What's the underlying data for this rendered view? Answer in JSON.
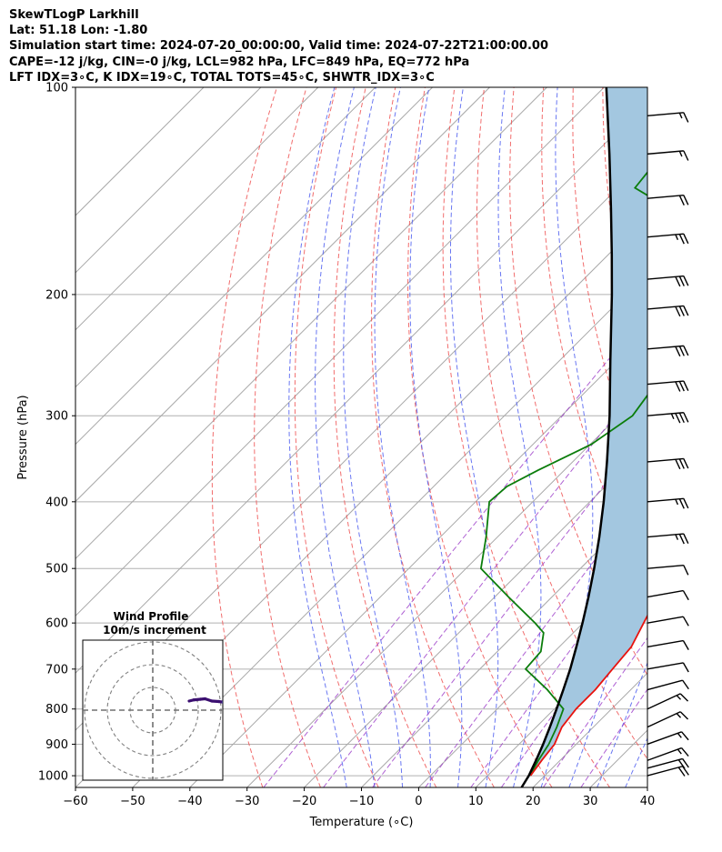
{
  "header": {
    "line1": "SkewTLogP Larkhill",
    "line2": "Lat: 51.18   Lon: -1.80",
    "line3": "Simulation start time: 2024-07-20_00:00:00, Valid time: 2024-07-22T21:00:00.00",
    "line4": "CAPE=-12 j/kg, CIN=-0 j/kg, LCL=982 hPa, LFC=849 hPa, EQ=772 hPa",
    "line5": "LFT IDX=3∘C, K IDX=19∘C, TOTAL TOTS=45∘C, SHWTR_IDX=3∘C"
  },
  "chart_data": {
    "type": "line",
    "xlabel": "Temperature (∘C)",
    "ylabel": "Pressure (hPa)",
    "xlim": [
      -60,
      40
    ],
    "ylim": [
      1040,
      100
    ],
    "y_scale": "log",
    "skew": true,
    "x_ticks": [
      -60,
      -50,
      -40,
      -30,
      -20,
      -10,
      0,
      10,
      20,
      30,
      40
    ],
    "x_tick_labels": [
      "−60",
      "−50",
      "−40",
      "−30",
      "−20",
      "−10",
      "0",
      "10",
      "20",
      "30",
      "40"
    ],
    "y_ticks": [
      100,
      200,
      300,
      400,
      500,
      600,
      700,
      800,
      900,
      1000
    ],
    "y_tick_labels": [
      "100",
      "200",
      "300",
      "400",
      "500",
      "600",
      "700",
      "800",
      "900",
      "1000"
    ],
    "series": [
      {
        "name": "",
        "role": "temperature",
        "color": "#e8130e",
        "points": [
          [
            1000,
            17.5
          ],
          [
            950,
            16.8
          ],
          [
            900,
            16.2
          ],
          [
            850,
            14.5
          ],
          [
            800,
            13.8
          ],
          [
            750,
            13.8
          ],
          [
            700,
            13.2
          ],
          [
            650,
            12.6
          ],
          [
            600,
            10.6
          ],
          [
            550,
            8.4
          ],
          [
            500,
            6.2
          ],
          [
            450,
            3.2
          ],
          [
            400,
            -0.6
          ],
          [
            350,
            -5.8
          ],
          [
            300,
            -12.4
          ],
          [
            260,
            -19.2
          ],
          [
            230,
            -27.4
          ],
          [
            200,
            -35.0
          ],
          [
            180,
            -38.2
          ],
          [
            160,
            -43.4
          ],
          [
            140,
            -50.4
          ],
          [
            120,
            -58.4
          ],
          [
            110,
            -63.2
          ],
          [
            100,
            -68.8
          ]
        ]
      },
      {
        "name": "",
        "role": "dewpoint",
        "color": "#0b7d0b",
        "points": [
          [
            1000,
            17.4
          ],
          [
            950,
            16.2
          ],
          [
            900,
            15.2
          ],
          [
            850,
            13.6
          ],
          [
            800,
            11.6
          ],
          [
            750,
            5.4
          ],
          [
            700,
            -2.0
          ],
          [
            660,
            -2.4
          ],
          [
            620,
            -5.2
          ],
          [
            600,
            -8.4
          ],
          [
            550,
            -17.6
          ],
          [
            500,
            -27.4
          ],
          [
            450,
            -32.0
          ],
          [
            400,
            -37.6
          ],
          [
            380,
            -37.2
          ],
          [
            360,
            -34.6
          ],
          [
            330,
            -29.8
          ],
          [
            300,
            -27.6
          ],
          [
            260,
            -29.6
          ],
          [
            230,
            -34.0
          ],
          [
            200,
            -38.2
          ],
          [
            180,
            -42.0
          ],
          [
            168,
            -45.8
          ],
          [
            150,
            -57.4
          ],
          [
            140,
            -67.0
          ],
          [
            120,
            -68.6
          ],
          [
            100,
            -72.4
          ]
        ]
      },
      {
        "name": "",
        "role": "parcel",
        "color": "#000000",
        "points": [
          [
            1040,
            18.0
          ],
          [
            1000,
            17.2
          ],
          [
            950,
            15.8
          ],
          [
            900,
            14.2
          ],
          [
            850,
            12.4
          ],
          [
            800,
            10.4
          ],
          [
            750,
            8.2
          ],
          [
            700,
            5.8
          ],
          [
            650,
            3.0
          ],
          [
            600,
            -0.1
          ],
          [
            550,
            -3.6
          ],
          [
            500,
            -7.6
          ],
          [
            450,
            -12.2
          ],
          [
            400,
            -17.6
          ],
          [
            350,
            -24.0
          ],
          [
            300,
            -31.6
          ],
          [
            250,
            -41.0
          ],
          [
            200,
            -52.4
          ],
          [
            175,
            -59.4
          ],
          [
            150,
            -67.6
          ],
          [
            125,
            -77.4
          ],
          [
            100,
            -89.6
          ]
        ]
      }
    ],
    "dry_adiabats_theta_c": [
      -30,
      -20,
      -10,
      0,
      10,
      20,
      30,
      40,
      50,
      60,
      70,
      80,
      90,
      100,
      110,
      120,
      130,
      140,
      150,
      160,
      170
    ],
    "moist_adiabats_c": [
      -15,
      -10,
      -5,
      0,
      5,
      10,
      15,
      20,
      25,
      30,
      35
    ],
    "mixing_ratio_lines_gkg": [
      0.4,
      1,
      2,
      4,
      7,
      10,
      16,
      24
    ],
    "wind_barbs": [
      {
        "p": 1000,
        "speed_kt": 20,
        "dir_deg": 255
      },
      {
        "p": 975,
        "speed_kt": 20,
        "dir_deg": 255
      },
      {
        "p": 950,
        "speed_kt": 15,
        "dir_deg": 250
      },
      {
        "p": 900,
        "speed_kt": 15,
        "dir_deg": 250
      },
      {
        "p": 850,
        "speed_kt": 15,
        "dir_deg": 245
      },
      {
        "p": 800,
        "speed_kt": 15,
        "dir_deg": 245
      },
      {
        "p": 750,
        "speed_kt": 10,
        "dir_deg": 255
      },
      {
        "p": 700,
        "speed_kt": 10,
        "dir_deg": 260
      },
      {
        "p": 650,
        "speed_kt": 10,
        "dir_deg": 260
      },
      {
        "p": 600,
        "speed_kt": 10,
        "dir_deg": 260
      },
      {
        "p": 550,
        "speed_kt": 10,
        "dir_deg": 260
      },
      {
        "p": 500,
        "speed_kt": 10,
        "dir_deg": 265
      },
      {
        "p": 450,
        "speed_kt": 25,
        "dir_deg": 265
      },
      {
        "p": 400,
        "speed_kt": 25,
        "dir_deg": 265
      },
      {
        "p": 350,
        "speed_kt": 30,
        "dir_deg": 265
      },
      {
        "p": 300,
        "speed_kt": 35,
        "dir_deg": 265
      },
      {
        "p": 270,
        "speed_kt": 30,
        "dir_deg": 265
      },
      {
        "p": 240,
        "speed_kt": 30,
        "dir_deg": 265
      },
      {
        "p": 210,
        "speed_kt": 30,
        "dir_deg": 265
      },
      {
        "p": 190,
        "speed_kt": 30,
        "dir_deg": 265
      },
      {
        "p": 165,
        "speed_kt": 25,
        "dir_deg": 265
      },
      {
        "p": 145,
        "speed_kt": 20,
        "dir_deg": 265
      },
      {
        "p": 125,
        "speed_kt": 15,
        "dir_deg": 265
      },
      {
        "p": 110,
        "speed_kt": 15,
        "dir_deg": 265
      }
    ],
    "hodograph": {
      "title_line1": "Wind Profile",
      "title_line2": "10m/s increment",
      "ring_spacing_ms": 10,
      "rings": 3,
      "points": [
        [
          16,
          4
        ],
        [
          18,
          4.5
        ],
        [
          21,
          4.8
        ],
        [
          23,
          5
        ],
        [
          26,
          4
        ],
        [
          29,
          3.8
        ],
        [
          31,
          3.5
        ],
        [
          33,
          3
        ],
        [
          37,
          2
        ],
        [
          40,
          1
        ],
        [
          43,
          1.5
        ],
        [
          45,
          2.5
        ],
        [
          48,
          3
        ],
        [
          50,
          4
        ],
        [
          52,
          4.5
        ],
        [
          55,
          5
        ],
        [
          58,
          5.5
        ],
        [
          62,
          6
        ],
        [
          66,
          6.5
        ],
        [
          70,
          7
        ],
        [
          74,
          7.5
        ],
        [
          78,
          8
        ],
        [
          82,
          8.5
        ],
        [
          86,
          8.5
        ],
        [
          90,
          8.5
        ],
        [
          94,
          8.5
        ],
        [
          100,
          8.8
        ],
        [
          90,
          3.2
        ],
        [
          92,
          3.5
        ],
        [
          95,
          3.8
        ],
        [
          98,
          3.8
        ],
        [
          100,
          3.6
        ]
      ]
    }
  }
}
